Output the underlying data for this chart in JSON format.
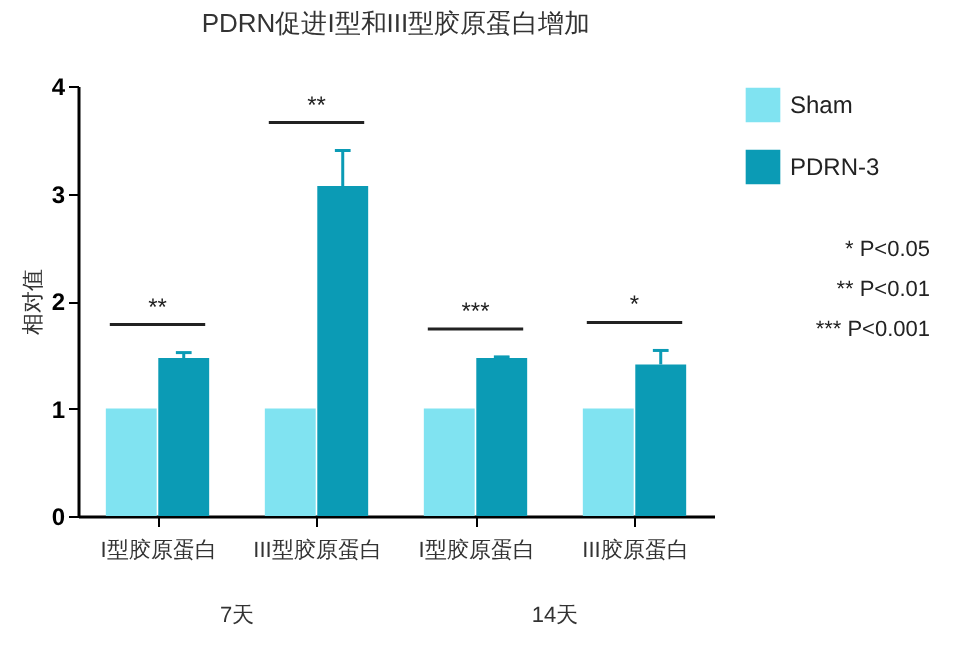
{
  "chart_data": {
    "type": "bar",
    "title": "PDRN促进I型和III型胶原蛋白增加",
    "ylabel": "相对值",
    "categories": [
      "I型胶原蛋白",
      "III型胶原蛋白",
      "I型胶原蛋白",
      "III胶原蛋白"
    ],
    "series": [
      {
        "name": "Sham",
        "color": "#80e3f1",
        "values": [
          1,
          1,
          1,
          1
        ]
      },
      {
        "name": "PDRN-3",
        "color": "#0b9bb5",
        "values": [
          1.47,
          3.07,
          1.47,
          1.41
        ],
        "errors": [
          [
            1.47,
            1.52
          ],
          [
            3.07,
            3.4
          ],
          [
            1.47,
            1.48
          ],
          [
            1.41,
            1.54
          ]
        ]
      }
    ],
    "ylim": [
      0,
      4
    ],
    "yticks": [
      0,
      1,
      2,
      3,
      4
    ],
    "grid": false,
    "legend": "right",
    "annotations": [
      "**",
      "**",
      "***",
      "*",
      "7天",
      "14天",
      "* P<0.05",
      "** P<0.01",
      "*** P<0.001"
    ]
  }
}
